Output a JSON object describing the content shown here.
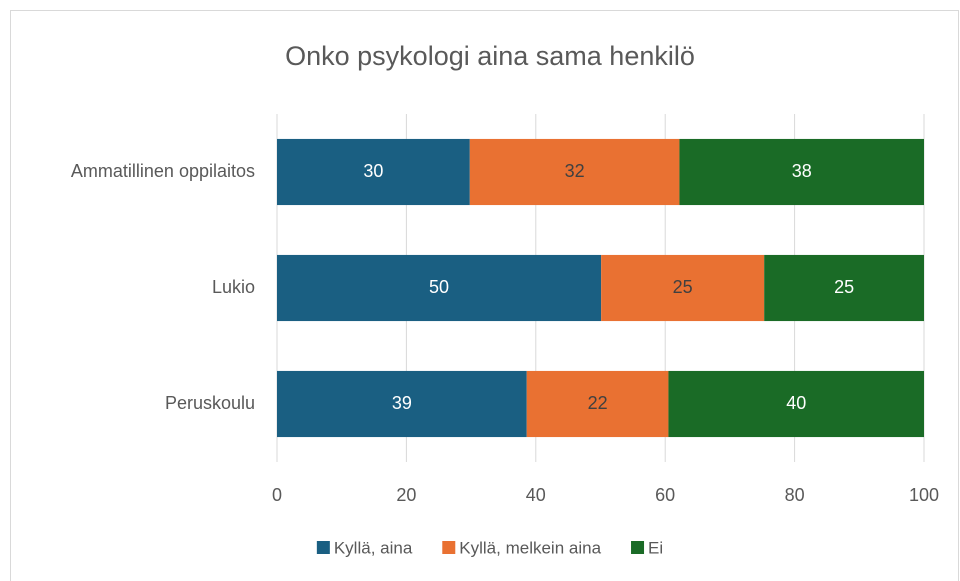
{
  "chart_data": {
    "type": "stacked_barh",
    "title": "Onko psykologi aina sama henkilö",
    "categories": [
      "Ammatillinen oppilaitos",
      "Lukio",
      "Peruskoulu"
    ],
    "series": [
      {
        "name": "Kyllä, aina",
        "color": "#1a5f82",
        "values": [
          29.8,
          50.1,
          38.6
        ],
        "value_labels": [
          "30",
          "50",
          "39"
        ]
      },
      {
        "name": "Kyllä, melkein aina",
        "color": "#e97132",
        "values": [
          32.4,
          25.2,
          21.9
        ],
        "value_labels": [
          "32",
          "25",
          "22"
        ]
      },
      {
        "name": "Ei",
        "color": "#1a6b26",
        "values": [
          37.8,
          24.7,
          39.5
        ],
        "value_labels": [
          "38",
          "25",
          "40"
        ]
      }
    ],
    "xlim": [
      0,
      100
    ],
    "xticks": [
      0,
      20,
      40,
      60,
      80,
      100
    ],
    "grid": true,
    "legend": "bottom"
  }
}
